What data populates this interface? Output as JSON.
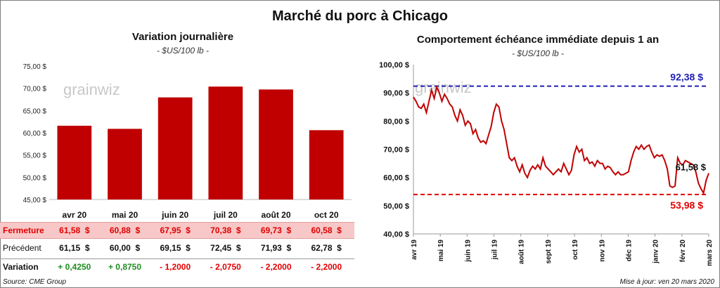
{
  "main_title": "Marché du porc à Chicago",
  "left_chart": {
    "title": "Variation journalière",
    "subtitle": "- $US/100 lb -"
  },
  "right_chart": {
    "title": "Comportement échéance immédiate depuis 1 an",
    "subtitle": "- $US/100 lb -"
  },
  "colors": {
    "bar": "#c00000",
    "line": "#c00000",
    "high_line": "#1f1fb5",
    "low_line": "#e00000",
    "positive": "#1e8c1e",
    "negative": "#e00000",
    "fermeture_bg": "#f8c8c8"
  },
  "watermark": "grainwiz",
  "chart_data": [
    {
      "type": "bar",
      "categories": [
        "avr 20",
        "mai 20",
        "juin 20",
        "juil 20",
        "août 20",
        "oct 20"
      ],
      "values": [
        61.58,
        60.88,
        67.95,
        70.38,
        69.73,
        60.58
      ],
      "ylim": [
        45,
        75
      ],
      "yticks": [
        "45,00 $",
        "50,00 $",
        "55,00 $",
        "60,00 $",
        "65,00 $",
        "70,00 $",
        "75,00 $"
      ],
      "grid": false
    },
    {
      "type": "line",
      "ylim": [
        40,
        100
      ],
      "yticks": [
        "40,00 $",
        "50,00 $",
        "60,00 $",
        "70,00 $",
        "80,00 $",
        "90,00 $",
        "100,00 $"
      ],
      "xticks": [
        "avr 19",
        "mai 19",
        "juin 19",
        "juil 19",
        "août 19",
        "sept 19",
        "oct 19",
        "nov 19",
        "déc 19",
        "janv 20",
        "févr 20",
        "mars 20"
      ],
      "series": [
        {
          "values": [
            88.5,
            87.0,
            85.0,
            84.5,
            86.0,
            83.0,
            87.0,
            91.0,
            88.0,
            92.0,
            90.0,
            87.0,
            89.5,
            88.0,
            86.0,
            85.0,
            82.0,
            80.0,
            84.0,
            82.0,
            78.5,
            80.0,
            79.0,
            75.5,
            77.0,
            74.0,
            72.5,
            73.0,
            72.0,
            75.0,
            78.0,
            83.0,
            86.0,
            85.0,
            80.0,
            77.0,
            72.0,
            67.0,
            66.0,
            67.0,
            64.0,
            62.0,
            64.5,
            61.5,
            60.0,
            62.5,
            64.0,
            63.0,
            64.5,
            63.0,
            67.0,
            64.0,
            63.0,
            62.0,
            61.0,
            62.0,
            63.0,
            62.0,
            65.0,
            63.0,
            61.0,
            62.5,
            68.0,
            71.0,
            69.0,
            70.0,
            66.0,
            67.0,
            65.0,
            65.5,
            64.0,
            66.0,
            65.0,
            65.0,
            63.0,
            64.0,
            63.5,
            62.0,
            61.0,
            62.0,
            61.0,
            61.0,
            61.5,
            62.0,
            66.0,
            69.0,
            71.0,
            70.0,
            71.5,
            70.0,
            71.0,
            71.5,
            69.0,
            67.0,
            68.0,
            67.5,
            68.0,
            66.0,
            63.0,
            57.0,
            56.5,
            57.0,
            67.0,
            65.0,
            64.5,
            66.0,
            65.5,
            65.0,
            64.5,
            62.0,
            58.0,
            56.0,
            54.5,
            59.0,
            61.5
          ]
        }
      ],
      "reference_lines": [
        {
          "value": 92.38,
          "label": "92,38 $"
        },
        {
          "value": 53.98,
          "label": "53,98 $"
        }
      ],
      "last_value_label": "61,58 $",
      "grid": false
    }
  ],
  "table": {
    "rows": [
      {
        "label": "Fermeture",
        "values": [
          "61,58  $",
          "60,88  $",
          "67,95  $",
          "70,38  $",
          "69,73  $",
          "60,58  $"
        ]
      },
      {
        "label": "Précédent",
        "values": [
          "61,15  $",
          "60,00  $",
          "69,15  $",
          "72,45  $",
          "71,93  $",
          "62,78  $"
        ]
      },
      {
        "label": "Variation",
        "values": [
          "+ 0,4250",
          "+ 0,8750",
          "- 1,2000",
          "- 2,0750",
          "- 2,2000",
          "- 2,2000"
        ]
      }
    ]
  },
  "source": "Source: CME Group",
  "update": "Mise à jour: ven 20 mars 2020"
}
